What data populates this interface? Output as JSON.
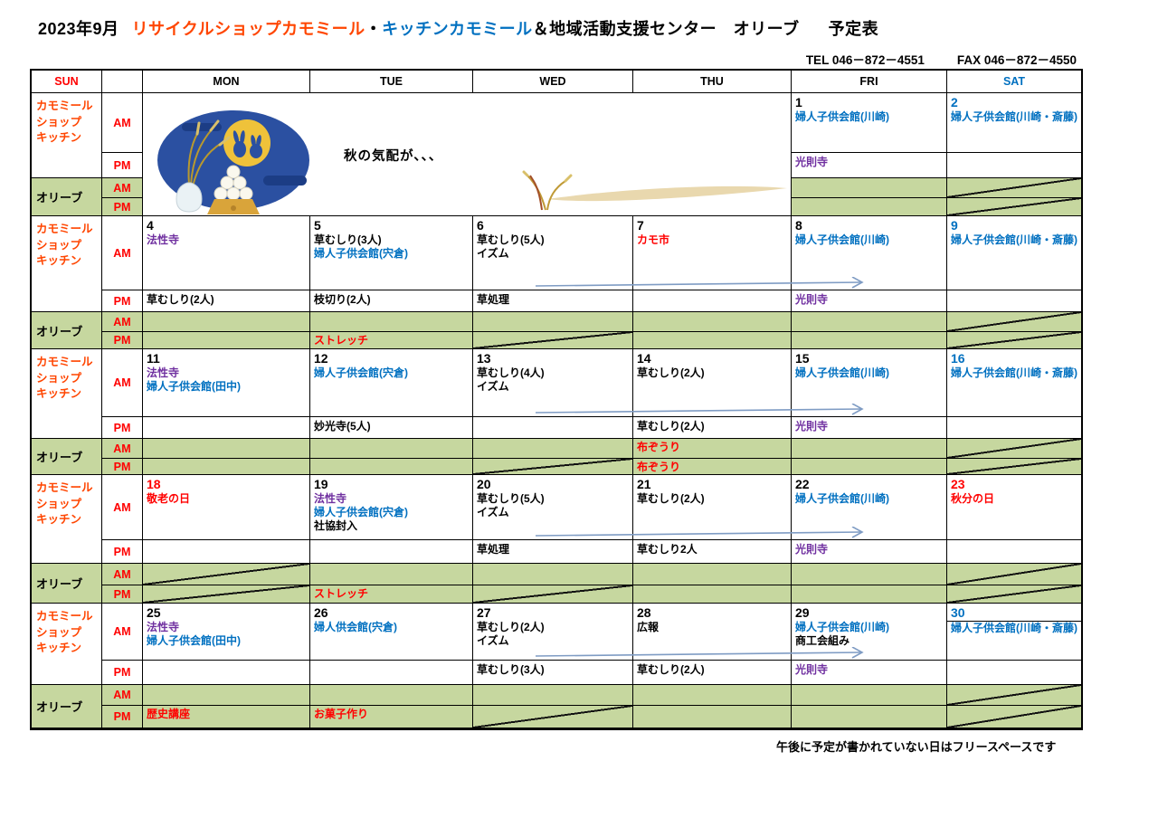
{
  "title": {
    "month": "2023年9月",
    "org_recycle": "リサイクルショップカモミール",
    "dot": "・",
    "org_kitchen": "キッチンカモミール",
    "org_olive": "＆地域活動支援センター　オリーブ",
    "suffix": "予定表"
  },
  "contact": {
    "tel": "TEL 046－872－4551",
    "fax": "FAX 046－872－4550"
  },
  "header_days": [
    "SUN",
    "",
    "MON",
    "TUE",
    "WED",
    "THU",
    "FRI",
    "SAT"
  ],
  "section_labels": {
    "chamomile": "カモミール\nショップ\nキッチン",
    "olive": "オリーブ",
    "am": "AM",
    "pm": "PM"
  },
  "banner": "秋の気配が、、、",
  "note": "午後に予定が書かれていない日はフリースペースです",
  "colors": {
    "red": "#ff0000",
    "orange_red": "#ff4500",
    "blue": "#0070c0",
    "purple": "#7030a0",
    "olive_green": "#c6d79f",
    "arrow_blue": "#7f9cc4",
    "black": "#000000"
  },
  "weeks": [
    {
      "panel": true,
      "arrow": false,
      "days": [
        {
          "col": 7,
          "date": "1",
          "am": [
            {
              "t": "婦人子供会館(川崎)",
              "c": "blue"
            }
          ],
          "pm": [
            {
              "t": "光則寺",
              "c": "purple"
            }
          ]
        },
        {
          "col": 8,
          "date": "2",
          "date_color": "blue",
          "am": [
            {
              "t": "婦人子供会館(川崎・斎藤)",
              "c": "blue"
            }
          ],
          "olive_am": {
            "diag": true
          },
          "olive_pm": {
            "diag": true
          }
        }
      ]
    },
    {
      "arrow": true,
      "days": [
        {
          "col": 3,
          "date": "4",
          "am": [
            {
              "t": "法性寺",
              "c": "purple"
            }
          ],
          "pm": [
            {
              "t": "草むしり(2人)"
            }
          ]
        },
        {
          "col": 4,
          "date": "5",
          "am": [
            {
              "t": "草むしり(3人)"
            },
            {
              "t": "婦人子供会館(宍倉)",
              "c": "blue"
            }
          ],
          "pm": [
            {
              "t": "枝切り(2人)"
            }
          ],
          "olive_pm": {
            "t": "ストレッチ",
            "c": "red"
          }
        },
        {
          "col": 5,
          "date": "6",
          "am": [
            {
              "t": "草むしり(5人)"
            },
            {
              "t": "イズム"
            }
          ],
          "pm": [
            {
              "t": "草処理"
            }
          ],
          "olive_pm": {
            "diag": true
          }
        },
        {
          "col": 6,
          "date": "7",
          "am": [
            {
              "t": "カモ市",
              "c": "red"
            }
          ]
        },
        {
          "col": 7,
          "date": "8",
          "am": [
            {
              "t": "婦人子供会館(川崎)",
              "c": "blue"
            }
          ],
          "pm": [
            {
              "t": "光則寺",
              "c": "purple"
            }
          ]
        },
        {
          "col": 8,
          "date": "9",
          "date_color": "blue",
          "am": [
            {
              "t": "婦人子供会館(川崎・斎藤)",
              "c": "blue"
            }
          ],
          "olive_am": {
            "diag": true
          },
          "olive_pm": {
            "diag": true
          }
        }
      ]
    },
    {
      "arrow": true,
      "days": [
        {
          "col": 3,
          "date": "11",
          "am": [
            {
              "t": "法性寺",
              "c": "purple"
            },
            {
              "t": "婦人子供会館(田中)",
              "c": "blue"
            }
          ]
        },
        {
          "col": 4,
          "date": "12",
          "am": [
            {
              "t": "婦人子供会館(宍倉)",
              "c": "blue"
            }
          ],
          "pm": [
            {
              "t": "妙光寺(5人)"
            }
          ]
        },
        {
          "col": 5,
          "date": "13",
          "am": [
            {
              "t": "草むしり(4人)"
            },
            {
              "t": "イズム"
            }
          ],
          "olive_pm": {
            "diag": true
          }
        },
        {
          "col": 6,
          "date": "14",
          "am": [
            {
              "t": "草むしり(2人)"
            }
          ],
          "pm": [
            {
              "t": "草むしり(2人)"
            }
          ],
          "olive_am": {
            "t": "布ぞうり",
            "c": "red"
          },
          "olive_pm": {
            "t": "布ぞうり",
            "c": "red"
          }
        },
        {
          "col": 7,
          "date": "15",
          "am": [
            {
              "t": "婦人子供会館(川崎)",
              "c": "blue"
            }
          ],
          "pm": [
            {
              "t": "光則寺",
              "c": "purple"
            }
          ]
        },
        {
          "col": 8,
          "date": "16",
          "date_color": "blue",
          "am": [
            {
              "t": "婦人子供会館(川崎・斎藤)",
              "c": "blue"
            }
          ],
          "olive_am": {
            "diag": true
          },
          "olive_pm": {
            "diag": true
          }
        }
      ]
    },
    {
      "arrow": true,
      "days": [
        {
          "col": 3,
          "date": "18",
          "date_color": "red",
          "am": [
            {
              "t": "敬老の日",
              "c": "red"
            }
          ],
          "olive_am": {
            "diag": true
          },
          "olive_pm": {
            "diag": true
          }
        },
        {
          "col": 4,
          "date": "19",
          "am": [
            {
              "t": "法性寺",
              "c": "purple"
            },
            {
              "t": "婦人子供会館(宍倉)",
              "c": "blue"
            },
            {
              "t": "社協封入"
            }
          ],
          "olive_pm": {
            "t": "ストレッチ",
            "c": "red"
          }
        },
        {
          "col": 5,
          "date": "20",
          "am": [
            {
              "t": "草むしり(5人)"
            },
            {
              "t": "イズム"
            }
          ],
          "pm": [
            {
              "t": "草処理"
            }
          ],
          "olive_pm": {
            "diag": true
          }
        },
        {
          "col": 6,
          "date": "21",
          "am": [
            {
              "t": "草むしり(2人)"
            }
          ],
          "pm": [
            {
              "t": "草むしり2人"
            }
          ]
        },
        {
          "col": 7,
          "date": "22",
          "am": [
            {
              "t": "婦人子供会館(川崎)",
              "c": "blue"
            }
          ],
          "pm": [
            {
              "t": "光則寺",
              "c": "purple"
            }
          ]
        },
        {
          "col": 8,
          "date": "23",
          "date_color": "red",
          "am": [
            {
              "t": "秋分の日",
              "c": "red"
            }
          ],
          "olive_am": {
            "diag": true
          },
          "olive_pm": {
            "diag": true
          }
        }
      ]
    },
    {
      "arrow": true,
      "days": [
        {
          "col": 3,
          "date": "25",
          "am": [
            {
              "t": "法性寺",
              "c": "purple"
            },
            {
              "t": "婦人子供会館(田中)",
              "c": "blue"
            }
          ],
          "olive_pm": {
            "t": "歴史講座",
            "c": "red"
          }
        },
        {
          "col": 4,
          "date": "26",
          "am": [
            {
              "t": "婦人供会館(宍倉)",
              "c": "blue"
            }
          ],
          "olive_pm": {
            "t": "お菓子作り",
            "c": "red"
          }
        },
        {
          "col": 5,
          "date": "27",
          "am": [
            {
              "t": "草むしり(2人)"
            },
            {
              "t": "イズム"
            }
          ],
          "pm": [
            {
              "t": "草むしり(3人)"
            }
          ],
          "olive_pm": {
            "diag": true
          }
        },
        {
          "col": 6,
          "date": "28",
          "am": [
            {
              "t": "広報"
            }
          ],
          "pm": [
            {
              "t": "草むしり(2人)"
            }
          ]
        },
        {
          "col": 7,
          "date": "29",
          "am": [
            {
              "t": "婦人子供会館(川崎)",
              "c": "blue"
            },
            {
              "t": "商工会組み"
            }
          ],
          "pm": [
            {
              "t": "光則寺",
              "c": "purple"
            }
          ]
        },
        {
          "col": 8,
          "date": "30",
          "date_color": "blue",
          "date_underline": true,
          "am": [
            {
              "t": "婦人子供会館(川崎・斎藤)",
              "c": "blue"
            }
          ],
          "olive_am": {
            "diag": true
          },
          "olive_pm": {
            "diag": true
          }
        }
      ]
    }
  ]
}
